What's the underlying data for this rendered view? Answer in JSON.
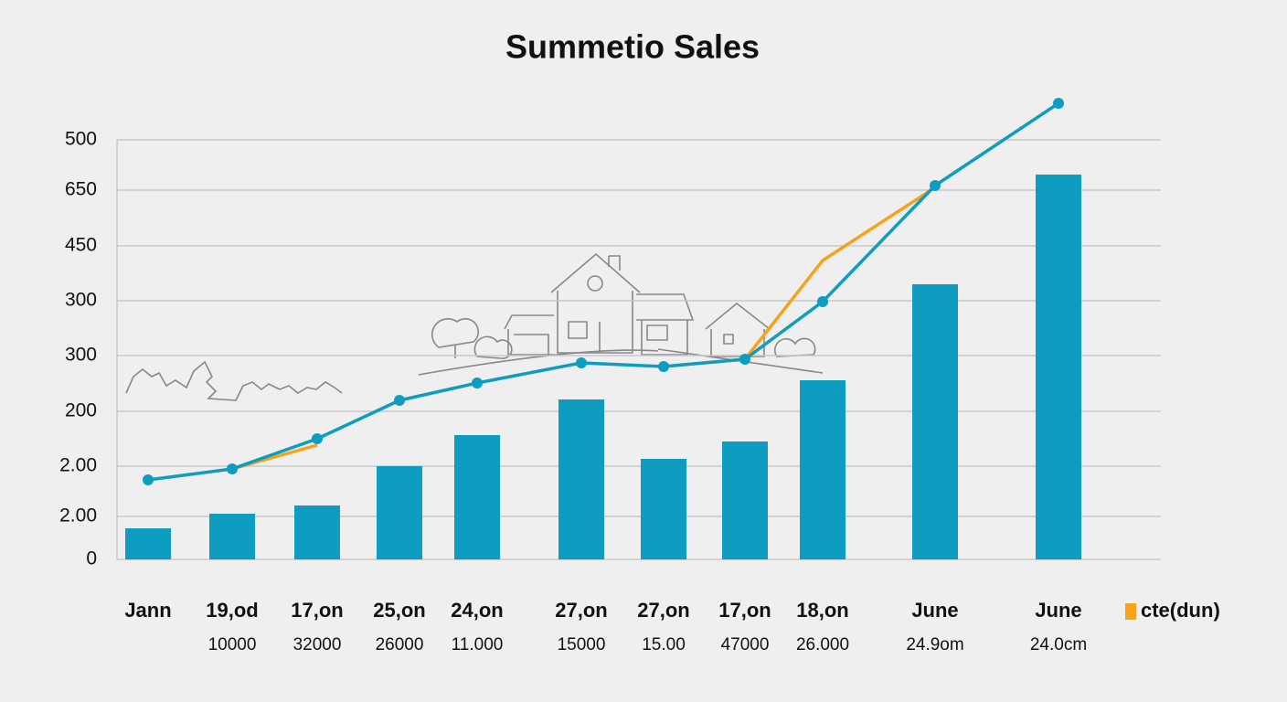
{
  "chart_data": {
    "type": "bar",
    "title": "Summetio Sales",
    "categories": [
      "Jann",
      "19,od",
      "17,on",
      "25,on",
      "24,on",
      "27,on",
      "27,on",
      "17,on",
      "18,on",
      "June",
      "June"
    ],
    "sublabels": [
      null,
      "10000",
      "32000",
      "26000",
      "11.000",
      "15000",
      "15.00",
      "47000",
      "26.000",
      "24.9om",
      "24.0cm"
    ],
    "ylim": [
      0,
      500
    ],
    "yticks": [
      0,
      {
        "value": 47,
        "label": "2.00"
      },
      {
        "value": 102,
        "label": "2.00"
      },
      {
        "value": 162,
        "label": "200"
      },
      {
        "value": 223,
        "label": "300"
      },
      {
        "value": 283,
        "label": "300"
      },
      {
        "value": 343,
        "label": "450"
      },
      {
        "value": 404,
        "label": "650"
      },
      {
        "value": 459,
        "label": "500"
      }
    ],
    "grid": true,
    "series": [
      {
        "type": "bar",
        "color": "#0e9dc0",
        "values": [
          34,
          50,
          59,
          102,
          136,
          175,
          110,
          129,
          196,
          301,
          421
        ]
      },
      {
        "type": "line",
        "name": "cte(dun)",
        "color": "#f5a31a",
        "values": [
          null,
          99,
          125,
          null,
          null,
          null,
          211,
          219,
          327,
          407,
          null
        ]
      },
      {
        "type": "line",
        "color": "#0e9dc0",
        "markers": true,
        "values": [
          87,
          99,
          132,
          174,
          193,
          215,
          211,
          219,
          282,
          409,
          499
        ]
      }
    ]
  }
}
